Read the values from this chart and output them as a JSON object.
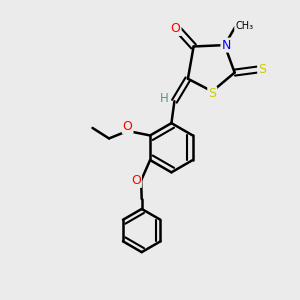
{
  "bg_color": "#ebebeb",
  "bond_color": "#000000",
  "atom_colors": {
    "O": "#ff0000",
    "N": "#0000ff",
    "S": "#cccc00",
    "C": "#000000",
    "H": "#4d9999"
  },
  "lw": 1.8,
  "fontsize": 8.5
}
